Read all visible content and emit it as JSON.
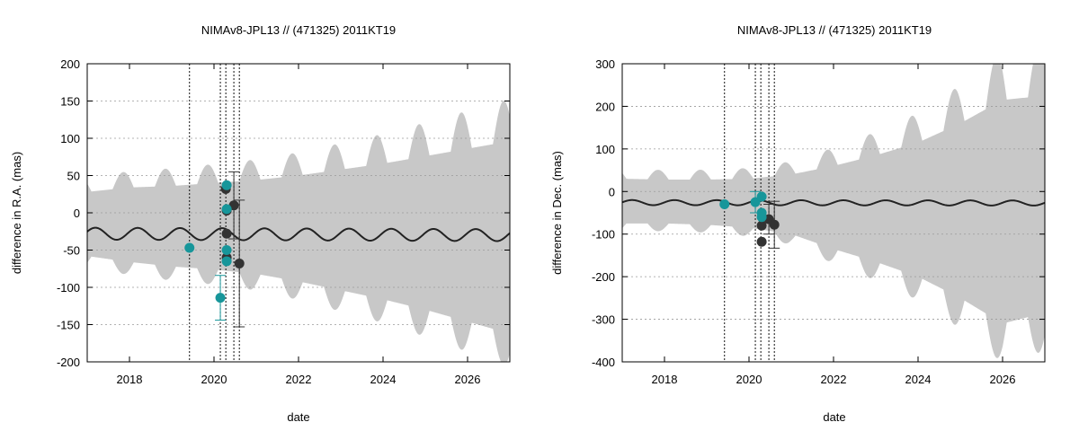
{
  "chart_data": [
    {
      "type": "line",
      "title": "NIMAv8-JPL13 // (471325) 2011KT19",
      "xlabel": "date",
      "ylabel": "difference in R.A. (mas)",
      "xlim": [
        2017.0,
        2027.0
      ],
      "ylim": [
        -200,
        200
      ],
      "xticks": [
        2018,
        2020,
        2022,
        2024,
        2026
      ],
      "yticks": [
        -200,
        -150,
        -100,
        -50,
        0,
        50,
        100,
        150,
        200
      ],
      "grid": true,
      "legend": "none",
      "series": [
        {
          "name": "mean difference",
          "color": "#222222",
          "model": {
            "offset": -28,
            "trend": -2,
            "amplitude": 8,
            "period": 1.0,
            "phase": 0.35
          }
        },
        {
          "name": "uncertainty envelope",
          "color": "#c8c8c8",
          "x": [
            2017.0,
            2018.0,
            2019.0,
            2020.0,
            2021.0,
            2022.0,
            2023.0,
            2024.0,
            2025.0,
            2026.0,
            2027.0
          ],
          "upper": [
            28,
            34,
            36,
            40,
            44,
            50,
            58,
            66,
            76,
            86,
            96
          ],
          "lower": [
            -58,
            -66,
            -72,
            -76,
            -82,
            -92,
            -104,
            -116,
            -130,
            -146,
            -162
          ]
        }
      ],
      "observations_teal": [
        {
          "x": 2019.42,
          "y": -47,
          "err": 0
        },
        {
          "x": 2020.15,
          "y": -114,
          "err": 30
        },
        {
          "x": 2020.3,
          "y": 37,
          "err": 0
        },
        {
          "x": 2020.3,
          "y": 5,
          "err": 0
        },
        {
          "x": 2020.3,
          "y": -50,
          "err": 0
        },
        {
          "x": 2020.3,
          "y": -65,
          "err": 0
        }
      ],
      "observations_dark": [
        {
          "x": 2020.28,
          "y": 32,
          "err": 0
        },
        {
          "x": 2020.3,
          "y": 3,
          "err": 0
        },
        {
          "x": 2020.3,
          "y": -28,
          "err": 0
        },
        {
          "x": 2020.3,
          "y": -60,
          "err": 0
        },
        {
          "x": 2020.47,
          "y": 10,
          "err": 45
        },
        {
          "x": 2020.6,
          "y": -68,
          "err": 85
        }
      ],
      "vlines": [
        2019.42,
        2020.15,
        2020.28,
        2020.47,
        2020.6
      ]
    },
    {
      "type": "line",
      "title": "NIMAv8-JPL13 // (471325) 2011KT19",
      "xlabel": "date",
      "ylabel": "difference in Dec. (mas)",
      "xlim": [
        2017.0,
        2027.0
      ],
      "ylim": [
        -400,
        300
      ],
      "xticks": [
        2018,
        2020,
        2022,
        2024,
        2026
      ],
      "yticks": [
        -400,
        -300,
        -200,
        -100,
        0,
        100,
        200,
        300
      ],
      "grid": true,
      "legend": "none",
      "series": [
        {
          "name": "mean difference",
          "color": "#222222",
          "model": {
            "offset": -26,
            "trend": -1,
            "amplitude": 6,
            "period": 1.0,
            "phase": 0.1
          }
        },
        {
          "name": "uncertainty envelope",
          "color": "#c8c8c8",
          "x": [
            2017.0,
            2018.0,
            2019.0,
            2020.0,
            2021.0,
            2022.0,
            2023.0,
            2024.0,
            2025.0,
            2026.0,
            2027.0
          ],
          "upper": [
            30,
            28,
            28,
            30,
            40,
            60,
            85,
            115,
            160,
            215,
            225
          ],
          "lower": [
            -75,
            -75,
            -78,
            -85,
            -100,
            -135,
            -165,
            -200,
            -250,
            -310,
            -285
          ]
        }
      ],
      "observations_teal": [
        {
          "x": 2019.42,
          "y": -30,
          "err": 0
        },
        {
          "x": 2020.15,
          "y": -25,
          "err": 25
        },
        {
          "x": 2020.3,
          "y": -12,
          "err": 0
        },
        {
          "x": 2020.3,
          "y": -50,
          "err": 0
        },
        {
          "x": 2020.3,
          "y": -60,
          "err": 0
        }
      ],
      "observations_dark": [
        {
          "x": 2020.3,
          "y": -80,
          "err": 0
        },
        {
          "x": 2020.3,
          "y": -118,
          "err": 0
        },
        {
          "x": 2020.47,
          "y": -65,
          "err": 35
        },
        {
          "x": 2020.6,
          "y": -78,
          "err": 55
        }
      ],
      "vlines": [
        2019.42,
        2020.15,
        2020.28,
        2020.47,
        2020.6
      ]
    }
  ]
}
